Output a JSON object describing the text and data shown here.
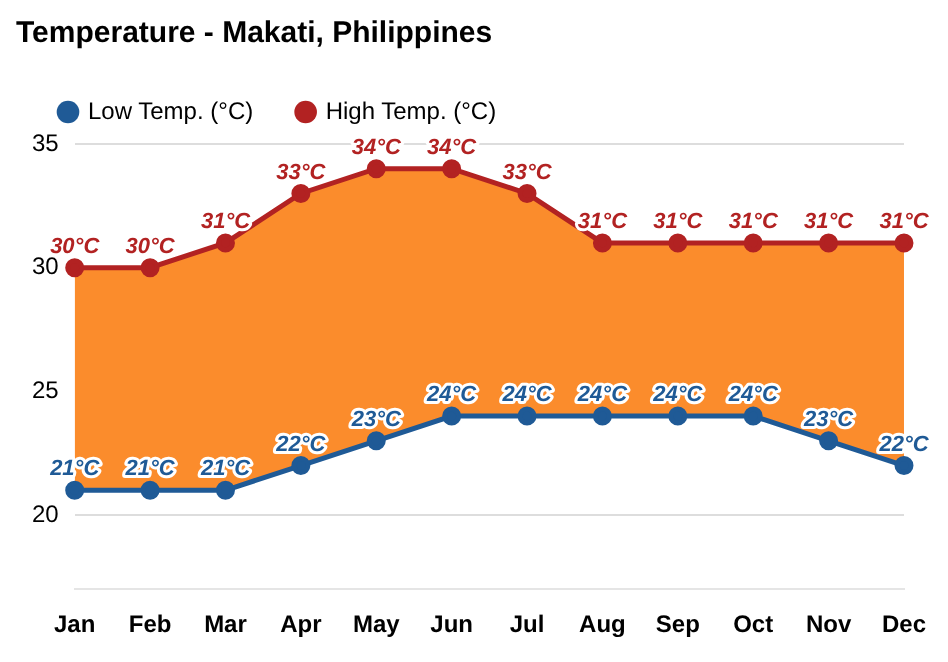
{
  "chart_data": {
    "type": "line",
    "title": "Temperature - Makati, Philippines",
    "categories": [
      "Jan",
      "Feb",
      "Mar",
      "Apr",
      "May",
      "Jun",
      "Jul",
      "Aug",
      "Sep",
      "Oct",
      "Nov",
      "Dec"
    ],
    "series": [
      {
        "name": "Low Temp. (°C)",
        "color": "#1f5a96",
        "values": [
          21,
          21,
          21,
          22,
          23,
          24,
          24,
          24,
          24,
          24,
          23,
          22
        ],
        "value_labels": [
          "21°C",
          "21°C",
          "21°C",
          "22°C",
          "23°C",
          "24°C",
          "24°C",
          "24°C",
          "24°C",
          "24°C",
          "23°C",
          "22°C"
        ]
      },
      {
        "name": "High Temp. (°C)",
        "type": "area",
        "color": "#b22222",
        "values": [
          30,
          30,
          31,
          33,
          34,
          34,
          33,
          31,
          31,
          31,
          31,
          31
        ],
        "value_labels": [
          "30°C",
          "30°C",
          "31°C",
          "33°C",
          "34°C",
          "34°C",
          "33°C",
          "31°C",
          "31°C",
          "31°C",
          "31°C",
          "31°C"
        ]
      }
    ],
    "ylim": [
      17,
      35
    ],
    "yticks": [
      20,
      25,
      30,
      35
    ],
    "grid": "y",
    "legend": "top left",
    "marker": "circle"
  }
}
